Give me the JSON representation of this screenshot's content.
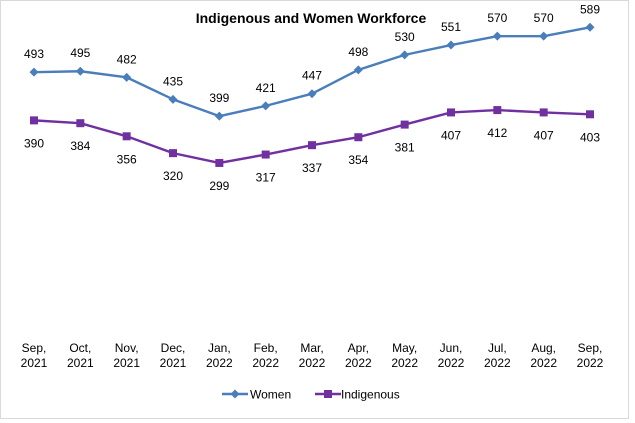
{
  "chart_data": {
    "type": "line",
    "title": "Indigenous and Women Workforce",
    "xlabel": "",
    "ylabel": "",
    "ylim": [
      200,
      650
    ],
    "grid": false,
    "legend_position": "bottom",
    "categories": [
      [
        "Sep,",
        "2021"
      ],
      [
        "Oct,",
        "2021"
      ],
      [
        "Nov,",
        "2021"
      ],
      [
        "Dec,",
        "2021"
      ],
      [
        "Jan,",
        "2022"
      ],
      [
        "Feb,",
        "2022"
      ],
      [
        "Mar,",
        "2022"
      ],
      [
        "Apr,",
        "2022"
      ],
      [
        "May,",
        "2022"
      ],
      [
        "Jun,",
        "2022"
      ],
      [
        "Jul,",
        "2022"
      ],
      [
        "Aug,",
        "2022"
      ],
      [
        "Sep,",
        "2022"
      ]
    ],
    "series": [
      {
        "name": "Women",
        "color": "#4a7ebb",
        "marker": "diamond",
        "values": [
          493,
          495,
          482,
          435,
          399,
          421,
          447,
          498,
          530,
          551,
          570,
          570,
          589
        ]
      },
      {
        "name": "Indigenous",
        "color": "#7030a0",
        "marker": "square",
        "values": [
          390,
          384,
          356,
          320,
          299,
          317,
          337,
          354,
          381,
          407,
          412,
          407,
          403
        ]
      }
    ]
  }
}
